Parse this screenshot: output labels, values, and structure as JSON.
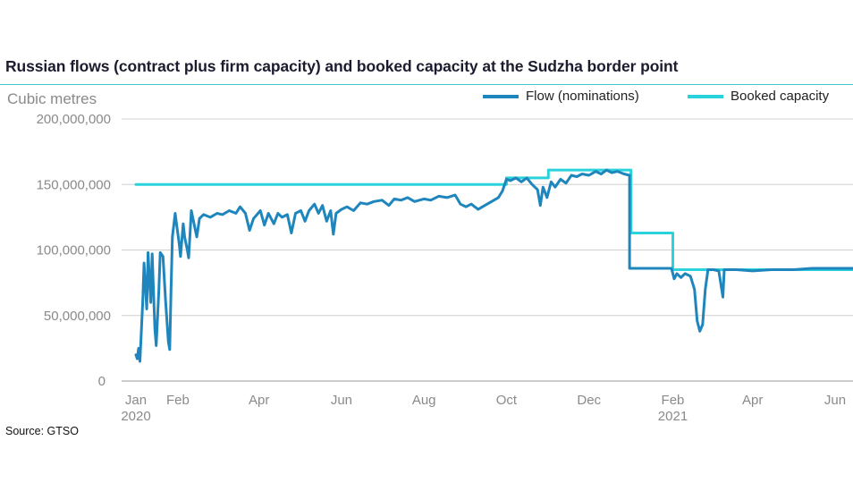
{
  "chart_data": {
    "type": "line",
    "title": "Russian flows (contract plus firm capacity) and booked capacity at the Sudzha border point",
    "ylabel": "Cubic metres",
    "source": "Source: GTSO",
    "ylim": [
      0,
      200000000
    ],
    "y_ticks": [
      {
        "value": 0,
        "label": "0"
      },
      {
        "value": 50000000,
        "label": "50,000,000"
      },
      {
        "value": 100000000,
        "label": "100,000,000"
      },
      {
        "value": 150000000,
        "label": "150,000,000"
      },
      {
        "value": 200000000,
        "label": "200,000,000"
      }
    ],
    "x_range": [
      "2020-01-01",
      "2021-06-30"
    ],
    "x_ticks": [
      {
        "date": "2020-01-01",
        "label": "Jan",
        "sublabel": "2020"
      },
      {
        "date": "2020-02-01",
        "label": "Feb",
        "sublabel": ""
      },
      {
        "date": "2020-04-01",
        "label": "Apr",
        "sublabel": ""
      },
      {
        "date": "2020-06-01",
        "label": "Jun",
        "sublabel": ""
      },
      {
        "date": "2020-08-01",
        "label": "Aug",
        "sublabel": ""
      },
      {
        "date": "2020-10-01",
        "label": "Oct",
        "sublabel": ""
      },
      {
        "date": "2020-12-01",
        "label": "Dec",
        "sublabel": ""
      },
      {
        "date": "2021-02-01",
        "label": "Feb",
        "sublabel": "2021"
      },
      {
        "date": "2021-04-01",
        "label": "Apr",
        "sublabel": ""
      },
      {
        "date": "2021-06-01",
        "label": "Jun",
        "sublabel": ""
      }
    ],
    "grid": true,
    "legend_position": "top-right",
    "series": [
      {
        "name": "Flow (nominations)",
        "color": "#1f86bd",
        "points": [
          [
            "2020-01-01",
            20000000
          ],
          [
            "2020-01-02",
            17000000
          ],
          [
            "2020-01-03",
            25000000
          ],
          [
            "2020-01-04",
            15000000
          ],
          [
            "2020-01-06",
            60000000
          ],
          [
            "2020-01-07",
            90000000
          ],
          [
            "2020-01-09",
            55000000
          ],
          [
            "2020-01-10",
            98000000
          ],
          [
            "2020-01-12",
            60000000
          ],
          [
            "2020-01-13",
            97000000
          ],
          [
            "2020-01-15",
            40000000
          ],
          [
            "2020-01-16",
            27000000
          ],
          [
            "2020-01-18",
            70000000
          ],
          [
            "2020-01-19",
            98000000
          ],
          [
            "2020-01-21",
            95000000
          ],
          [
            "2020-01-23",
            60000000
          ],
          [
            "2020-01-25",
            30000000
          ],
          [
            "2020-01-26",
            24000000
          ],
          [
            "2020-01-27",
            70000000
          ],
          [
            "2020-01-28",
            110000000
          ],
          [
            "2020-01-30",
            128000000
          ],
          [
            "2020-01-31",
            120000000
          ],
          [
            "2020-02-02",
            105000000
          ],
          [
            "2020-02-03",
            95000000
          ],
          [
            "2020-02-05",
            120000000
          ],
          [
            "2020-02-06",
            110000000
          ],
          [
            "2020-02-08",
            100000000
          ],
          [
            "2020-02-09",
            94000000
          ],
          [
            "2020-02-11",
            130000000
          ],
          [
            "2020-02-13",
            120000000
          ],
          [
            "2020-02-15",
            110000000
          ],
          [
            "2020-02-17",
            124000000
          ],
          [
            "2020-02-20",
            127000000
          ],
          [
            "2020-02-25",
            125000000
          ],
          [
            "2020-03-01",
            128000000
          ],
          [
            "2020-03-05",
            127000000
          ],
          [
            "2020-03-10",
            130000000
          ],
          [
            "2020-03-15",
            128000000
          ],
          [
            "2020-03-18",
            133000000
          ],
          [
            "2020-03-22",
            128000000
          ],
          [
            "2020-03-25",
            115000000
          ],
          [
            "2020-03-28",
            124000000
          ],
          [
            "2020-04-02",
            130000000
          ],
          [
            "2020-04-05",
            119000000
          ],
          [
            "2020-04-08",
            128000000
          ],
          [
            "2020-04-12",
            120000000
          ],
          [
            "2020-04-15",
            128000000
          ],
          [
            "2020-04-18",
            125000000
          ],
          [
            "2020-04-22",
            127000000
          ],
          [
            "2020-04-25",
            113000000
          ],
          [
            "2020-04-28",
            128000000
          ],
          [
            "2020-05-02",
            130000000
          ],
          [
            "2020-05-05",
            122000000
          ],
          [
            "2020-05-08",
            130000000
          ],
          [
            "2020-05-12",
            135000000
          ],
          [
            "2020-05-15",
            128000000
          ],
          [
            "2020-05-18",
            134000000
          ],
          [
            "2020-05-21",
            122000000
          ],
          [
            "2020-05-24",
            130000000
          ],
          [
            "2020-05-26",
            112000000
          ],
          [
            "2020-05-28",
            128000000
          ],
          [
            "2020-06-01",
            131000000
          ],
          [
            "2020-06-05",
            133000000
          ],
          [
            "2020-06-10",
            130000000
          ],
          [
            "2020-06-15",
            136000000
          ],
          [
            "2020-06-20",
            135000000
          ],
          [
            "2020-06-25",
            137000000
          ],
          [
            "2020-07-01",
            138000000
          ],
          [
            "2020-07-06",
            134000000
          ],
          [
            "2020-07-10",
            139000000
          ],
          [
            "2020-07-15",
            138000000
          ],
          [
            "2020-07-20",
            140000000
          ],
          [
            "2020-07-25",
            137000000
          ],
          [
            "2020-08-01",
            139000000
          ],
          [
            "2020-08-06",
            138000000
          ],
          [
            "2020-08-12",
            141000000
          ],
          [
            "2020-08-18",
            140000000
          ],
          [
            "2020-08-24",
            142000000
          ],
          [
            "2020-08-28",
            135000000
          ],
          [
            "2020-09-01",
            133000000
          ],
          [
            "2020-09-05",
            135000000
          ],
          [
            "2020-09-10",
            131000000
          ],
          [
            "2020-09-15",
            134000000
          ],
          [
            "2020-09-20",
            137000000
          ],
          [
            "2020-09-25",
            140000000
          ],
          [
            "2020-09-28",
            145000000
          ],
          [
            "2020-10-01",
            154000000
          ],
          [
            "2020-10-04",
            153000000
          ],
          [
            "2020-10-08",
            155000000
          ],
          [
            "2020-10-12",
            152000000
          ],
          [
            "2020-10-16",
            155000000
          ],
          [
            "2020-10-20",
            150000000
          ],
          [
            "2020-10-24",
            146000000
          ],
          [
            "2020-10-26",
            134000000
          ],
          [
            "2020-10-28",
            148000000
          ],
          [
            "2020-10-31",
            140000000
          ],
          [
            "2020-11-03",
            152000000
          ],
          [
            "2020-11-06",
            148000000
          ],
          [
            "2020-11-10",
            154000000
          ],
          [
            "2020-11-14",
            151000000
          ],
          [
            "2020-11-18",
            157000000
          ],
          [
            "2020-11-22",
            156000000
          ],
          [
            "2020-11-26",
            158000000
          ],
          [
            "2020-12-01",
            157000000
          ],
          [
            "2020-12-06",
            160000000
          ],
          [
            "2020-12-10",
            158000000
          ],
          [
            "2020-12-14",
            161000000
          ],
          [
            "2020-12-18",
            159000000
          ],
          [
            "2020-12-22",
            160000000
          ],
          [
            "2020-12-27",
            158000000
          ],
          [
            "2020-12-31",
            157000000
          ],
          [
            "2020-12-31",
            86000000
          ],
          [
            "2021-01-10",
            86000000
          ],
          [
            "2021-01-20",
            86000000
          ],
          [
            "2021-01-31",
            86000000
          ],
          [
            "2021-02-02",
            78000000
          ],
          [
            "2021-02-04",
            82000000
          ],
          [
            "2021-02-07",
            79000000
          ],
          [
            "2021-02-10",
            82000000
          ],
          [
            "2021-02-14",
            80000000
          ],
          [
            "2021-02-17",
            70000000
          ],
          [
            "2021-02-19",
            46000000
          ],
          [
            "2021-02-21",
            38000000
          ],
          [
            "2021-02-23",
            43000000
          ],
          [
            "2021-02-25",
            70000000
          ],
          [
            "2021-02-27",
            85000000
          ],
          [
            "2021-03-03",
            85000000
          ],
          [
            "2021-03-07",
            84000000
          ],
          [
            "2021-03-10",
            64000000
          ],
          [
            "2021-03-11",
            85000000
          ],
          [
            "2021-03-20",
            85000000
          ],
          [
            "2021-04-01",
            84000000
          ],
          [
            "2021-04-15",
            85000000
          ],
          [
            "2021-05-01",
            85000000
          ],
          [
            "2021-05-15",
            86000000
          ],
          [
            "2021-06-01",
            86000000
          ],
          [
            "2021-06-15",
            86000000
          ],
          [
            "2021-06-30",
            85000000
          ]
        ]
      },
      {
        "name": "Booked capacity",
        "color": "#2ad3dc",
        "points": [
          [
            "2020-01-01",
            150000000
          ],
          [
            "2020-10-01",
            150000000
          ],
          [
            "2020-10-01",
            155000000
          ],
          [
            "2020-11-01",
            155000000
          ],
          [
            "2020-11-01",
            161000000
          ],
          [
            "2021-01-01",
            161000000
          ],
          [
            "2021-01-01",
            113000000
          ],
          [
            "2021-02-01",
            113000000
          ],
          [
            "2021-02-01",
            85000000
          ],
          [
            "2021-06-30",
            85000000
          ]
        ]
      }
    ]
  }
}
